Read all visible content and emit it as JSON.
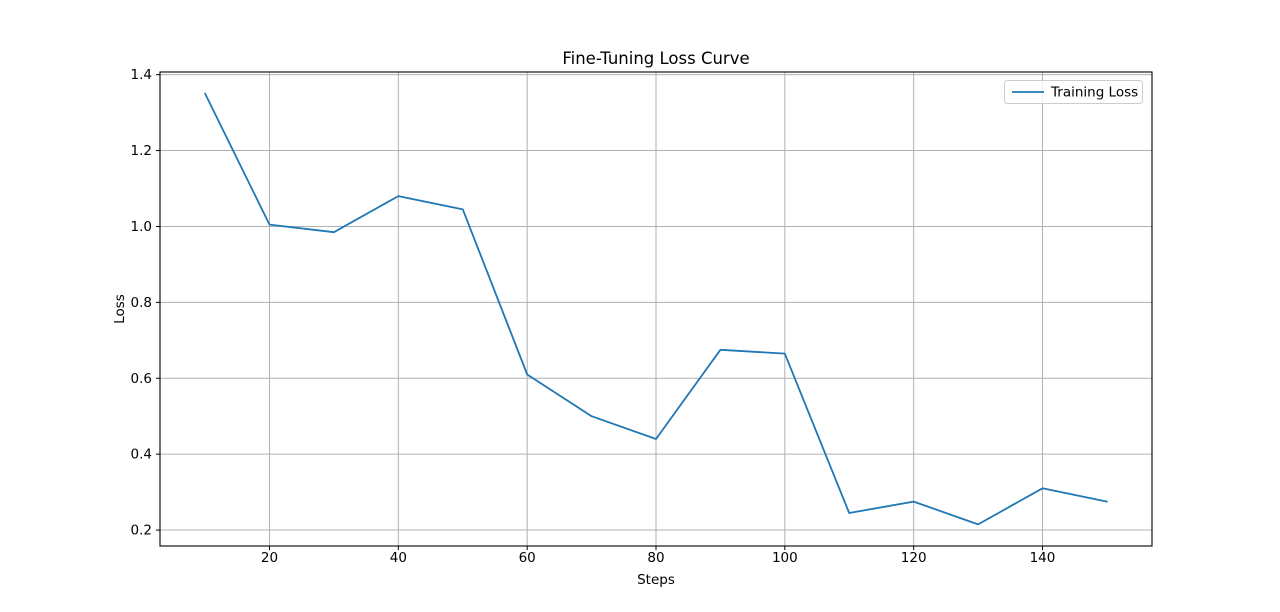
{
  "figure": {
    "title": "Fine-Tuning Loss Curve",
    "xlabel": "Steps",
    "ylabel": "Loss",
    "background": "#ffffff"
  },
  "legend": {
    "position": "upper right",
    "entries": [
      {
        "label": "Training Loss",
        "color": "#1f77b4"
      }
    ]
  },
  "chart_data": {
    "type": "line",
    "title": "Fine-Tuning Loss Curve",
    "xlabel": "Steps",
    "ylabel": "Loss",
    "series": [
      {
        "name": "Training Loss",
        "color": "#1f77b4",
        "x": [
          10,
          20,
          30,
          40,
          50,
          60,
          70,
          80,
          90,
          100,
          110,
          120,
          130,
          140,
          150
        ],
        "y": [
          1.35,
          1.005,
          0.985,
          1.08,
          1.045,
          0.61,
          0.5,
          0.44,
          0.675,
          0.665,
          0.245,
          0.275,
          0.215,
          0.31,
          0.275
        ]
      }
    ],
    "xlim": [
      3,
      157
    ],
    "ylim": [
      0.158,
      1.407
    ],
    "xticks": [
      20,
      40,
      60,
      80,
      100,
      120,
      140
    ],
    "yticks": [
      0.2,
      0.4,
      0.6,
      0.8,
      1.0,
      1.2,
      1.4
    ],
    "grid": true,
    "grid_color": "#b0b0b0",
    "spine_color": "#000000",
    "legend_position": "upper right",
    "legend_border_color": "#cccccc"
  }
}
